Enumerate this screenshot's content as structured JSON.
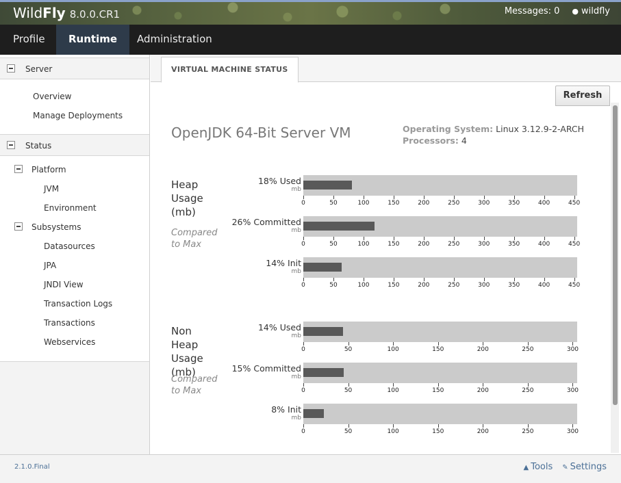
{
  "header": {
    "brand_light": "Wild",
    "brand_bold": "Fly",
    "version": "8.0.0.CR1",
    "messages": "Messages: 0",
    "user": "wildfly"
  },
  "nav": {
    "tabs": [
      {
        "label": "Profile"
      },
      {
        "label": "Runtime",
        "active": true
      },
      {
        "label": "Administration"
      }
    ]
  },
  "sidebar": {
    "server": {
      "label": "Server",
      "items": [
        "Overview",
        "Manage Deployments"
      ]
    },
    "status": {
      "label": "Status",
      "platform": {
        "label": "Platform",
        "items": [
          "JVM",
          "Environment"
        ]
      },
      "subsystems": {
        "label": "Subsystems",
        "items": [
          "Datasources",
          "JPA",
          "JNDI View",
          "Transaction Logs",
          "Transactions",
          "Webservices"
        ]
      }
    }
  },
  "content": {
    "tab_label": "VIRTUAL MACHINE STATUS",
    "refresh_label": "Refresh",
    "vm_name": "OpenJDK 64-Bit Server VM",
    "os_key": "Operating System:",
    "os_value": "Linux 3.12.9-2-ARCH",
    "proc_key": "Processors:",
    "proc_value": "4"
  },
  "chart_data": [
    {
      "type": "bar",
      "title": "Heap Usage (mb)",
      "subtitle": "Compared to Max",
      "categories": [
        "18% Used",
        "26% Committed",
        "14% Init"
      ],
      "unit": "mb",
      "values": [
        81,
        118,
        64
      ],
      "xlim": [
        0,
        455
      ],
      "ticks": [
        0,
        50,
        100,
        150,
        200,
        250,
        300,
        350,
        400,
        450
      ]
    },
    {
      "type": "bar",
      "title": "Non Heap Usage (mb)",
      "subtitle": "Compared to Max",
      "categories": [
        "14% Used",
        "15% Committed",
        "8% Init"
      ],
      "unit": "mb",
      "values": [
        44,
        45,
        23
      ],
      "xlim": [
        0,
        305
      ],
      "ticks": [
        0,
        50,
        100,
        150,
        200,
        250,
        300
      ]
    }
  ],
  "footer": {
    "version": "2.1.0.Final",
    "tools": "Tools",
    "settings": "Settings"
  }
}
